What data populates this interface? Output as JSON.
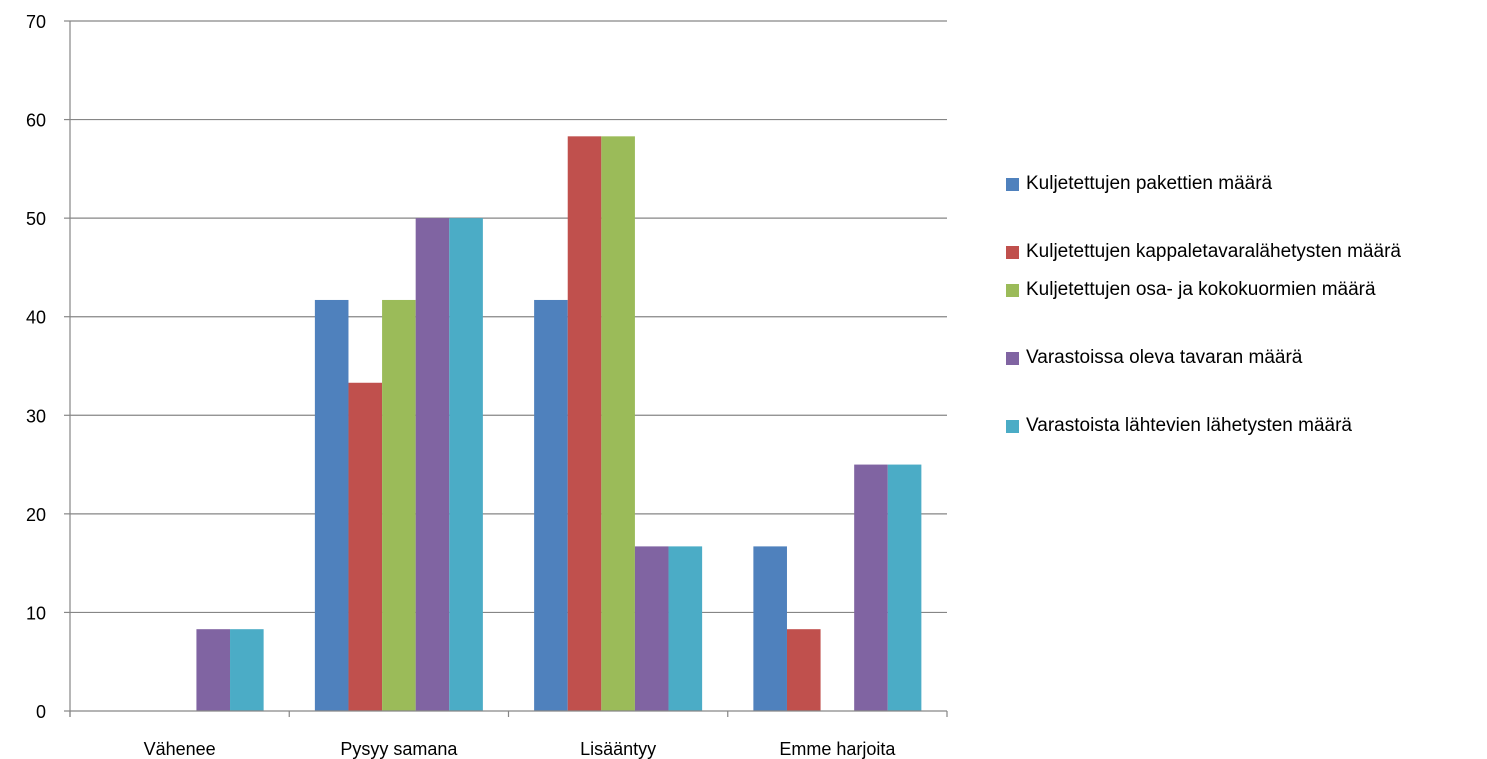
{
  "chart_data": {
    "type": "bar",
    "categories": [
      "Vähenee",
      "Pysyy samana",
      "Lisääntyy",
      "Emme harjoita"
    ],
    "ylim": [
      0,
      70
    ],
    "yticks": [
      0,
      10,
      20,
      30,
      40,
      50,
      60,
      70
    ],
    "grid": true,
    "legend_position": "right",
    "series": [
      {
        "name": "Kuljetettujen pakettien määrä",
        "color": "#4F81BD",
        "values": [
          0,
          41.7,
          41.7,
          16.7
        ]
      },
      {
        "name": "Kuljetettujen kappaletavaralähetysten määrä",
        "color": "#C0504D",
        "values": [
          0,
          33.3,
          58.3,
          8.3
        ]
      },
      {
        "name": "Kuljetettujen osa- ja kokokuormien määrä",
        "color": "#9BBB59",
        "values": [
          0,
          41.7,
          58.3,
          0
        ]
      },
      {
        "name": "Varastoissa oleva tavaran määrä",
        "color": "#8064A2",
        "values": [
          8.3,
          50,
          16.7,
          25
        ]
      },
      {
        "name": "Varastoista lähtevien lähetysten määrä",
        "color": "#4BACC6",
        "values": [
          8.3,
          50,
          16.7,
          25
        ]
      }
    ]
  }
}
